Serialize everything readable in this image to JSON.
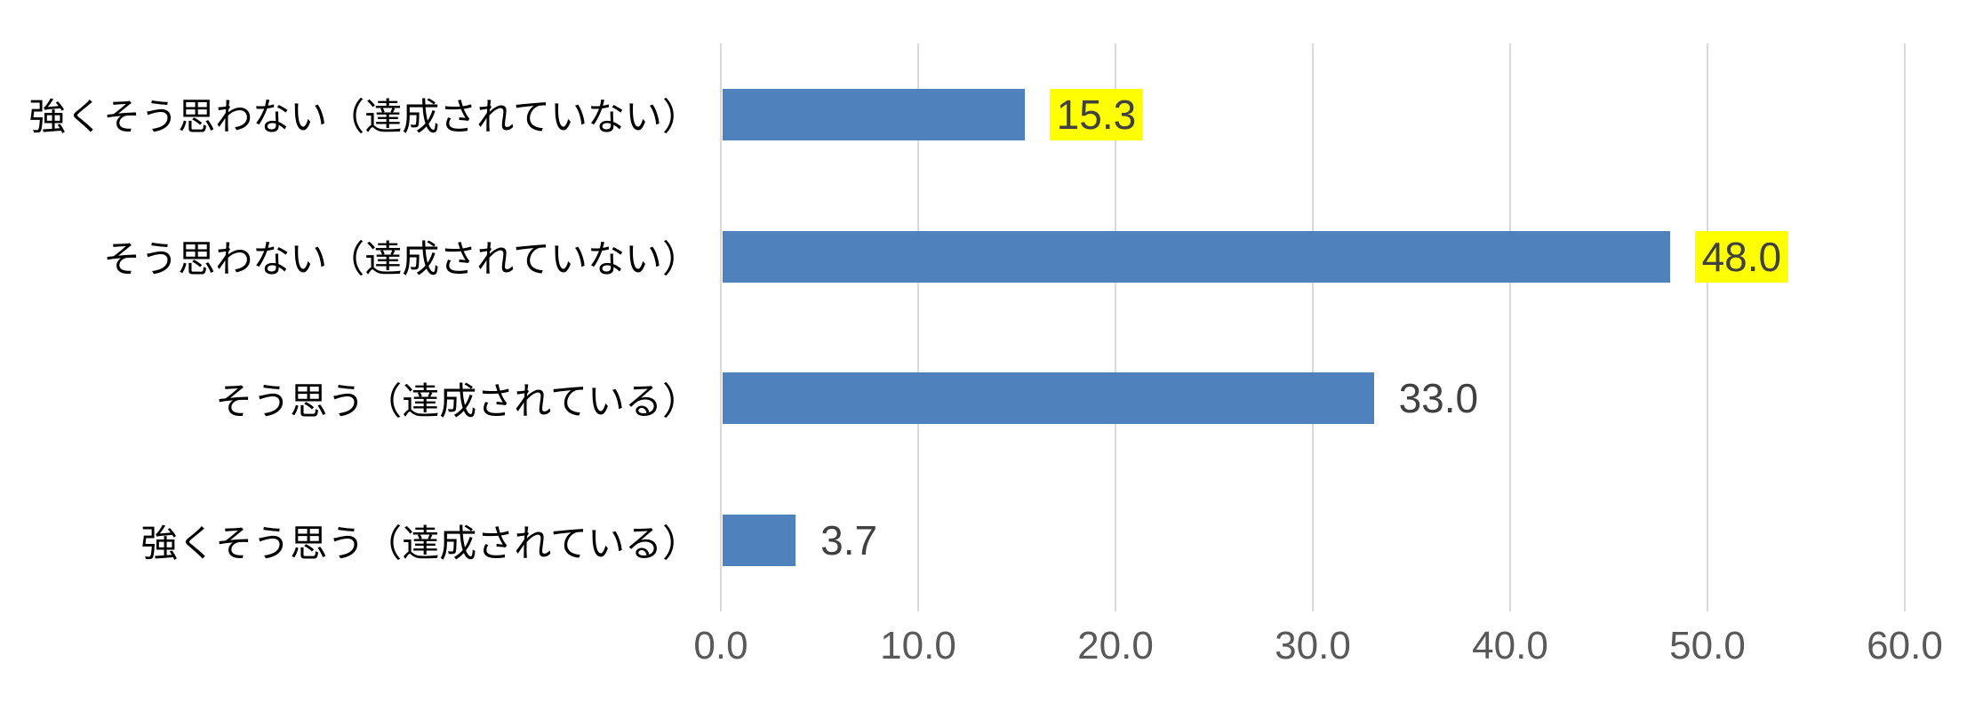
{
  "chart_data": {
    "type": "bar",
    "orientation": "horizontal",
    "title": "",
    "xlabel": "",
    "ylabel": "",
    "categories": [
      "強くそう思わない（達成されていない）",
      "そう思わない（達成されていない）",
      "そう思う（達成されている）",
      "強くそう思う（達成されている）"
    ],
    "values": [
      15.3,
      48.0,
      33.0,
      3.7
    ],
    "value_labels": [
      "15.3",
      "48.0",
      "33.0",
      "3.7"
    ],
    "highlighted": [
      true,
      true,
      false,
      false
    ],
    "x_ticks": [
      "0.0",
      "10.0",
      "20.0",
      "30.0",
      "40.0",
      "50.0",
      "60.0"
    ],
    "x_tick_values": [
      0,
      10,
      20,
      30,
      40,
      50,
      60
    ],
    "xlim": [
      0,
      60
    ],
    "grid": "vertical",
    "legend": "none",
    "colors": {
      "bar": "#4f81bd",
      "gridline": "#d9d9d9",
      "highlight_background": "#ffff00",
      "value_label_text": "#404040",
      "category_label_text": "#000000",
      "axis_tick_text": "#595959",
      "background": "#ffffff"
    }
  }
}
